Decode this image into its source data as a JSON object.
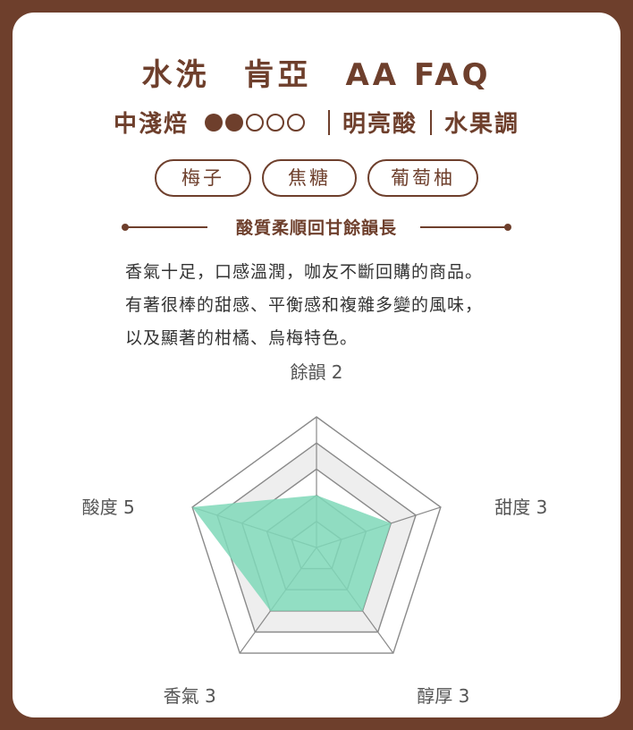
{
  "title": "水洗　肯亞　AA FAQ",
  "subtitle": {
    "roast": "中淺焙",
    "roast_level": {
      "filled": 2,
      "total": 5
    },
    "acidity": "明亮酸",
    "profile": "水果調"
  },
  "tags": [
    "梅子",
    "焦糖",
    "葡萄柚"
  ],
  "section_heading": "酸質柔順回甘餘韻長",
  "description": [
    "香氣十足，口感溫潤，咖友不斷回購的商品。",
    "有著很棒的甜感、平衡感和複雜多變的風味，",
    "以及顯著的柑橘、烏梅特色。"
  ],
  "colors": {
    "brand": "#6e3f2c",
    "fill": "#7fd8b8"
  },
  "chart_data": {
    "type": "radar",
    "max": 5,
    "axes": [
      {
        "name": "餘韻",
        "value": 2,
        "label": "餘韻 2"
      },
      {
        "name": "甜度",
        "value": 3,
        "label": "甜度 3"
      },
      {
        "name": "醇厚",
        "value": 3,
        "label": "醇厚 3"
      },
      {
        "name": "香氣",
        "value": 3,
        "label": "香氣 3"
      },
      {
        "name": "酸度",
        "value": 5,
        "label": "酸度 5"
      }
    ]
  }
}
